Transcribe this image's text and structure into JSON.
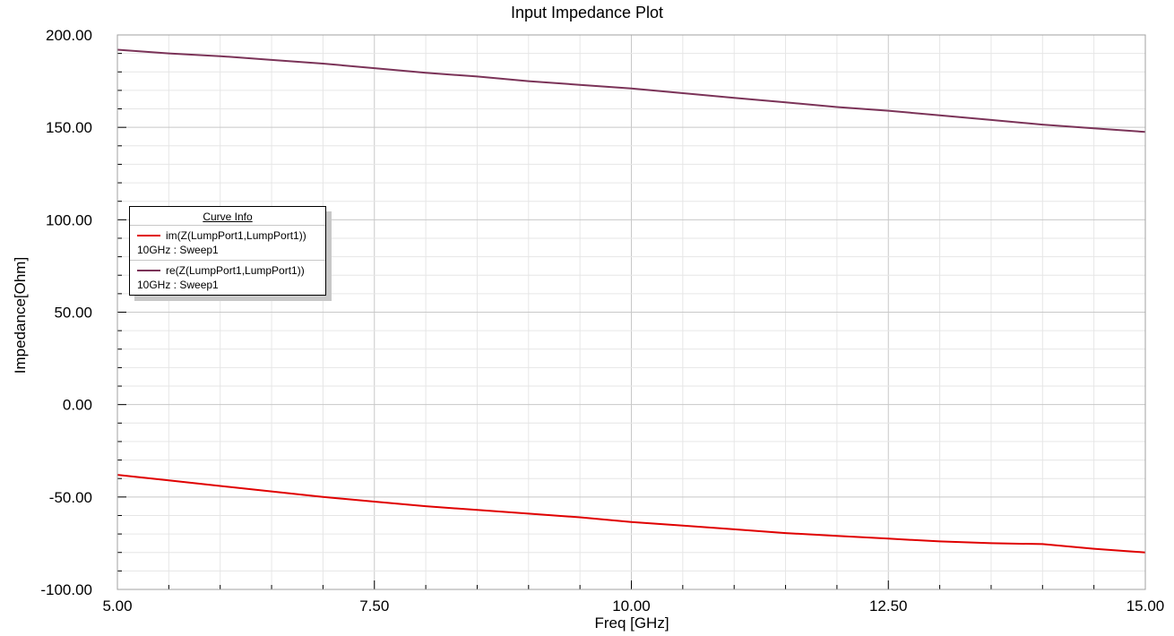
{
  "chart_data": {
    "type": "line",
    "title": "Input Impedance Plot",
    "xlabel": "Freq [GHz]",
    "ylabel": "Impedance[Ohm]",
    "xlim": [
      5.0,
      15.0
    ],
    "ylim": [
      -100.0,
      200.0
    ],
    "x_ticks": [
      5.0,
      7.5,
      10.0,
      12.5,
      15.0
    ],
    "x_tick_labels": [
      "5.00",
      "7.50",
      "10.00",
      "12.50",
      "15.00"
    ],
    "y_ticks": [
      200.0,
      150.0,
      100.0,
      50.0,
      0.0,
      -50.0,
      -100.0
    ],
    "y_tick_labels": [
      "200.00",
      "150.00",
      "100.00",
      "50.00",
      "0.00",
      "-50.00",
      "-100.00"
    ],
    "x_minor_step": 0.5,
    "y_minor_step": 10,
    "grid": true,
    "legend_position": "upper-left",
    "legend_title": "Curve Info",
    "series": [
      {
        "name": "im(Z(LumpPort1,LumpPort1))",
        "subtitle": "10GHz : Sweep1",
        "color": "#e00000",
        "x": [
          5.0,
          5.5,
          6.0,
          6.5,
          7.0,
          7.5,
          8.0,
          8.5,
          9.0,
          9.5,
          10.0,
          10.5,
          11.0,
          11.5,
          12.0,
          12.5,
          13.0,
          13.5,
          14.0,
          14.5,
          15.0
        ],
        "y": [
          -38,
          -41,
          -44,
          -47,
          -50,
          -52.5,
          -55,
          -57,
          -59,
          -61,
          -63.5,
          -65.5,
          -67.5,
          -69.5,
          -71,
          -72.5,
          -74,
          -75,
          -75.5,
          -78,
          -80
        ]
      },
      {
        "name": "re(Z(LumpPort1,LumpPort1))",
        "subtitle": "10GHz : Sweep1",
        "color": "#7b3358",
        "x": [
          5.0,
          5.5,
          6.0,
          6.5,
          7.0,
          7.5,
          8.0,
          8.5,
          9.0,
          9.5,
          10.0,
          10.5,
          11.0,
          11.5,
          12.0,
          12.5,
          13.0,
          13.5,
          14.0,
          14.5,
          15.0
        ],
        "y": [
          192,
          190,
          188.5,
          186.5,
          184.5,
          182,
          179.5,
          177.5,
          175,
          173,
          171,
          168.5,
          166,
          163.5,
          161,
          159,
          156.5,
          154,
          151.5,
          149.5,
          147.5
        ]
      }
    ]
  }
}
